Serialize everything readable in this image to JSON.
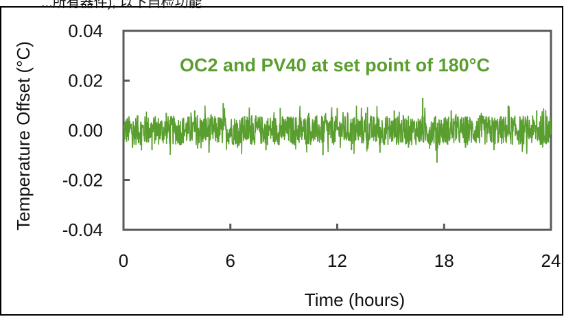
{
  "header_text": "...所有器件), 以下自检功能",
  "chart_data": {
    "type": "line",
    "title": "OC2 and PV40 at set point of 180°C",
    "xlabel": "Time (hours)",
    "ylabel": "Temperature Offset (°C)",
    "xlim": [
      0,
      24
    ],
    "ylim": [
      -0.04,
      0.04
    ],
    "x_ticks": [
      "0",
      "6",
      "12",
      "18",
      "24"
    ],
    "y_ticks": [
      "0.04",
      "0.02",
      "0.00",
      "-0.02",
      "-0.04"
    ],
    "grid": false,
    "legend": "none",
    "series": [
      {
        "color": "#5a9e2f",
        "noise_band": [
          -0.006,
          0.006
        ],
        "peak_max": 0.013,
        "peak_min": -0.013,
        "x": [
          0,
          0.8,
          1.6,
          2.4,
          3.2,
          4.0,
          4.8,
          5.6,
          6.4,
          7.2,
          8.0,
          8.8,
          9.6,
          10.4,
          11.2,
          12.0,
          12.8,
          13.6,
          14.4,
          15.2,
          16.0,
          16.8,
          17.6,
          18.4,
          19.2,
          20.0,
          20.8,
          21.6,
          22.4,
          23.2,
          24.0
        ],
        "y": [
          0.0,
          0.006,
          -0.008,
          0.007,
          -0.006,
          0.008,
          -0.009,
          0.011,
          -0.007,
          0.006,
          -0.008,
          0.009,
          -0.006,
          0.007,
          -0.01,
          0.009,
          -0.008,
          0.007,
          -0.009,
          0.008,
          -0.007,
          0.013,
          -0.013,
          0.008,
          -0.007,
          0.006,
          -0.008,
          0.01,
          -0.007,
          0.008,
          0.0
        ]
      }
    ]
  },
  "colors": {
    "accent": "#5a9e2f",
    "axis": "#595959",
    "text": "#111111"
  }
}
